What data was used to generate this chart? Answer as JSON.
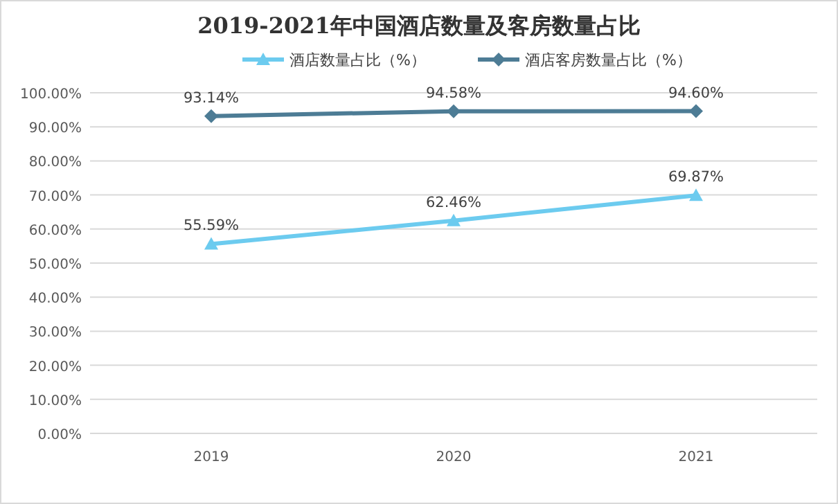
{
  "chart_data": {
    "type": "line",
    "title": "2019-2021年中国酒店数量及客房数量占比",
    "categories": [
      "2019",
      "2020",
      "2021"
    ],
    "series": [
      {
        "name": "酒店数量占比（%）",
        "color": "#6ccbef",
        "marker": "triangle",
        "values": [
          55.59,
          62.46,
          69.87
        ],
        "value_labels": [
          "55.59%",
          "62.46%",
          "69.87%"
        ]
      },
      {
        "name": "酒店客房数量占比（%）",
        "color": "#4d7c95",
        "marker": "diamond",
        "values": [
          93.14,
          94.58,
          94.6
        ],
        "value_labels": [
          "93.14%",
          "94.58%",
          "94.60%"
        ]
      }
    ],
    "ylim": [
      0,
      100
    ],
    "yticks": [
      {
        "value": 0,
        "label": "0.00%"
      },
      {
        "value": 10,
        "label": "10.00%"
      },
      {
        "value": 20,
        "label": "20.00%"
      },
      {
        "value": 30,
        "label": "30.00%"
      },
      {
        "value": 40,
        "label": "40.00%"
      },
      {
        "value": 50,
        "label": "50.00%"
      },
      {
        "value": 60,
        "label": "60.00%"
      },
      {
        "value": 70,
        "label": "70.00%"
      },
      {
        "value": 80,
        "label": "80.00%"
      },
      {
        "value": 90,
        "label": "90.00%"
      },
      {
        "value": 100,
        "label": "100.00%"
      }
    ],
    "grid": "y",
    "legend": "top",
    "line_style": "solid"
  }
}
